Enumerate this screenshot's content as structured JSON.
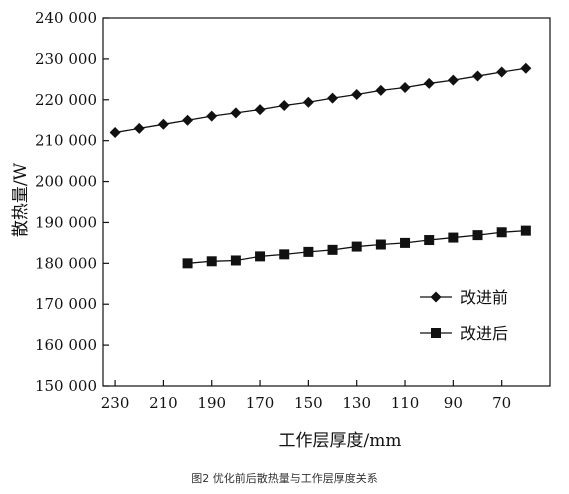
{
  "chart_data": {
    "type": "line",
    "xlabel": "工作层厚度/mm",
    "ylabel": "散热量/W",
    "xlim": [
      235,
      50
    ],
    "ylim": [
      150000,
      240000
    ],
    "x_ticks": [
      230,
      210,
      190,
      170,
      150,
      130,
      110,
      90,
      70
    ],
    "x_tick_labels": [
      "230",
      "210",
      "190",
      "170",
      "150",
      "130",
      "110",
      "90",
      "70"
    ],
    "y_ticks": [
      150000,
      160000,
      170000,
      180000,
      190000,
      200000,
      210000,
      220000,
      230000,
      240000
    ],
    "y_tick_labels": [
      "150 000",
      "160 000",
      "170 000",
      "180 000",
      "190 000",
      "200 000",
      "210 000",
      "220 000",
      "230 000",
      "240 000"
    ],
    "legend_position": "center-right",
    "grid": false,
    "series": [
      {
        "name": "改进前",
        "marker": "diamond",
        "x": [
          230,
          220,
          210,
          200,
          190,
          180,
          170,
          160,
          150,
          140,
          130,
          120,
          110,
          100,
          90,
          80,
          70,
          60
        ],
        "y": [
          212000,
          213000,
          214000,
          215000,
          216000,
          216800,
          217600,
          218600,
          219400,
          220400,
          221300,
          222300,
          223000,
          224000,
          224800,
          225800,
          226800,
          227700
        ]
      },
      {
        "name": "改进后",
        "marker": "square",
        "x": [
          200,
          190,
          180,
          170,
          160,
          150,
          140,
          130,
          120,
          110,
          100,
          90,
          80,
          70,
          60
        ],
        "y": [
          180000,
          180500,
          180700,
          181700,
          182200,
          182800,
          183300,
          184100,
          184600,
          185000,
          185700,
          186300,
          186900,
          187600,
          188000
        ]
      }
    ]
  },
  "caption": "图2 优化前后散热量与工作层厚度关系"
}
